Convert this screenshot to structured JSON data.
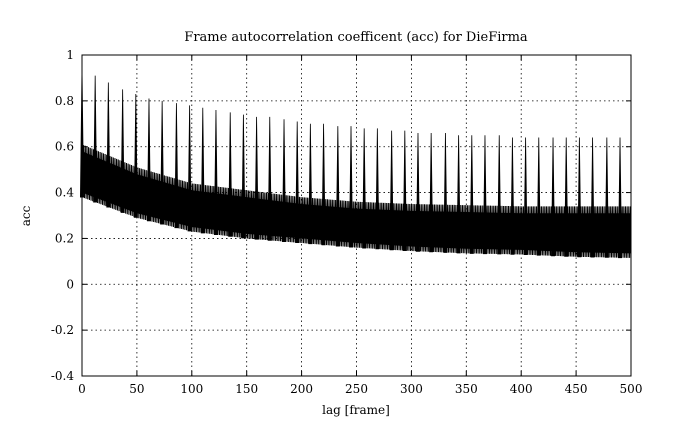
{
  "chart_data": {
    "type": "line",
    "title": "Frame autocorrelation coefficent (acc) for DieFirma",
    "xlabel": "lag [frame]",
    "ylabel": "acc",
    "xlim": [
      0,
      500
    ],
    "ylim": [
      -0.4,
      1
    ],
    "xticks": [
      "0",
      "50",
      "100",
      "150",
      "200",
      "250",
      "300",
      "350",
      "400",
      "450",
      "500"
    ],
    "yticks": [
      "-0.4",
      "-0.2",
      "0",
      "0.2",
      "0.4",
      "0.6",
      "0.8",
      "1"
    ],
    "grid": true,
    "legend": "none",
    "series_color": "#000000",
    "series": [
      {
        "envelope_lower": {
          "x": [
            0,
            50,
            100,
            150,
            200,
            250,
            300,
            350,
            400,
            450,
            500
          ],
          "y": [
            0.38,
            0.29,
            0.23,
            0.2,
            0.18,
            0.16,
            0.145,
            0.135,
            0.13,
            0.12,
            0.115
          ]
        },
        "envelope_upper": {
          "x": [
            0,
            50,
            100,
            150,
            200,
            250,
            300,
            350,
            400,
            450,
            500
          ],
          "y": [
            0.61,
            0.51,
            0.44,
            0.41,
            0.38,
            0.36,
            0.35,
            0.345,
            0.34,
            0.34,
            0.34
          ]
        },
        "peaks": {
          "x": [
            0,
            12,
            24,
            37,
            49,
            61,
            73,
            86,
            98,
            110,
            122,
            135,
            147,
            159,
            171,
            184,
            196,
            208,
            220,
            233,
            245,
            257,
            269,
            282,
            294,
            306,
            318,
            331,
            343,
            355,
            367,
            380,
            392,
            404,
            416,
            429,
            441,
            453,
            465,
            478,
            490
          ],
          "y": [
            0.95,
            0.91,
            0.88,
            0.85,
            0.83,
            0.81,
            0.8,
            0.79,
            0.78,
            0.77,
            0.76,
            0.75,
            0.74,
            0.73,
            0.73,
            0.72,
            0.71,
            0.7,
            0.7,
            0.69,
            0.69,
            0.68,
            0.68,
            0.67,
            0.67,
            0.66,
            0.66,
            0.66,
            0.65,
            0.65,
            0.65,
            0.65,
            0.64,
            0.64,
            0.64,
            0.64,
            0.64,
            0.64,
            0.64,
            0.64,
            0.64
          ]
        }
      }
    ]
  }
}
